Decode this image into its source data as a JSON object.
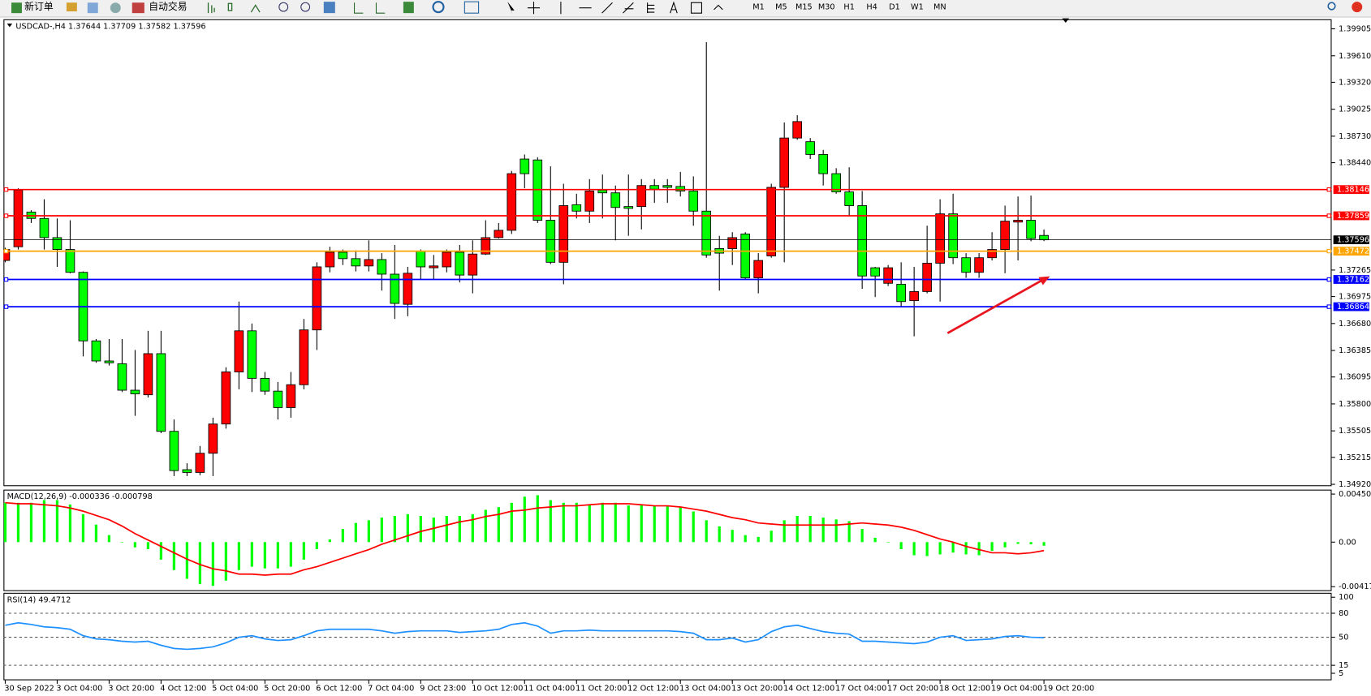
{
  "toolbar": {
    "buttons": [
      "新订单",
      "自动交易"
    ],
    "timeframes": [
      "M1",
      "M5",
      "M15",
      "M30",
      "H1",
      "H4",
      "D1",
      "W1",
      "MN"
    ]
  },
  "chart_data": [
    {
      "type": "candlestick",
      "title": "USDCAD-,H4  1.37644 1.37709 1.37582 1.37596",
      "categories": [
        "30 Sep 2022",
        null,
        null,
        null,
        "3 Oct 04:00",
        null,
        null,
        null,
        "3 Oct 20:00",
        null,
        null,
        null,
        "4 Oct 12:00",
        null,
        null,
        null,
        "5 Oct 04:00",
        null,
        null,
        null,
        "5 Oct 20:00",
        null,
        null,
        null,
        "6 Oct 12:00",
        null,
        null,
        null,
        "7 Oct 04:00",
        null,
        null,
        null,
        "9 Oct 23:00",
        null,
        null,
        null,
        "10 Oct 12:00",
        null,
        null,
        null,
        "11 Oct 04:00",
        null,
        null,
        null,
        "11 Oct 20:00",
        null,
        null,
        null,
        "12 Oct 12:00",
        null,
        null,
        null,
        "13 Oct 04:00",
        null,
        null,
        null,
        "13 Oct 20:00",
        null,
        null,
        null,
        "14 Oct 12:00",
        null,
        null,
        null,
        "17 Oct 04:00",
        null,
        null,
        null,
        "17 Oct 20:00",
        null,
        null,
        null,
        "18 Oct 12:00",
        null,
        null,
        null,
        "19 Oct 04:00",
        null,
        null,
        null,
        "19 Oct 20:00"
      ],
      "open": [
        1.3737,
        1.3752,
        1.379,
        1.3783,
        1.3762,
        1.3749,
        1.3724,
        1.3649,
        1.3627,
        1.3624,
        1.3595,
        1.359,
        1.3635,
        1.355,
        1.3508,
        1.3505,
        1.3526,
        1.3558,
        1.3615,
        1.366,
        1.3608,
        1.3594,
        1.3576,
        1.3601,
        1.3661,
        1.373,
        1.3746,
        1.3739,
        1.3731,
        1.3738,
        1.3722,
        1.3689,
        1.3747,
        1.3729,
        1.373,
        1.3746,
        1.3721,
        1.3744,
        1.3762,
        1.377,
        1.3848,
        1.3847,
        1.3781,
        1.3735,
        1.3798,
        1.3791,
        1.3814,
        1.3811,
        1.3796,
        1.3796,
        1.3819,
        1.3819,
        1.3818,
        1.3813,
        1.3791,
        1.375,
        1.375,
        1.3766,
        1.3718,
        1.3742,
        1.3817,
        1.3871,
        1.3867,
        1.3853,
        1.3832,
        1.3812,
        1.3797,
        1.3729,
        1.3712,
        1.3711,
        1.3693,
        1.3703,
        1.3734,
        1.3788,
        1.374,
        1.3724,
        1.374,
        1.3749,
        1.3779,
        1.3781,
        1.37644
      ],
      "high": [
        1.3751,
        1.3816,
        1.3792,
        1.3804,
        1.3783,
        1.3781,
        1.3725,
        1.3651,
        1.3651,
        1.3651,
        1.3639,
        1.366,
        1.366,
        1.3563,
        1.3515,
        1.3534,
        1.3565,
        1.362,
        1.3692,
        1.3668,
        1.3615,
        1.3604,
        1.3615,
        1.3673,
        1.3735,
        1.3752,
        1.3749,
        1.3748,
        1.3759,
        1.3745,
        1.3754,
        1.373,
        1.3749,
        1.3743,
        1.3749,
        1.3754,
        1.3759,
        1.3781,
        1.3778,
        1.3835,
        1.3853,
        1.385,
        1.384,
        1.3821,
        1.381,
        1.3826,
        1.3831,
        1.3819,
        1.3831,
        1.3826,
        1.3826,
        1.3826,
        1.3834,
        1.3829,
        1.3976,
        1.3764,
        1.3768,
        1.3768,
        1.3745,
        1.3821,
        1.3888,
        1.3896,
        1.3871,
        1.3858,
        1.3838,
        1.3839,
        1.3813,
        1.373,
        1.3732,
        1.3735,
        1.373,
        1.3775,
        1.3804,
        1.381,
        1.3745,
        1.3745,
        1.3768,
        1.3797,
        1.3807,
        1.3808,
        1.37709
      ],
      "low": [
        1.3735,
        1.3749,
        1.3778,
        1.3749,
        1.373,
        1.3723,
        1.3632,
        1.3625,
        1.3622,
        1.3593,
        1.3567,
        1.3587,
        1.3548,
        1.3501,
        1.3501,
        1.3502,
        1.3501,
        1.3553,
        1.3596,
        1.3593,
        1.359,
        1.3563,
        1.3565,
        1.3596,
        1.3639,
        1.3724,
        1.3732,
        1.3725,
        1.3725,
        1.3704,
        1.3673,
        1.3676,
        1.3716,
        1.3716,
        1.3724,
        1.3713,
        1.3701,
        1.3743,
        1.3761,
        1.3766,
        1.3816,
        1.3778,
        1.3733,
        1.3711,
        1.3783,
        1.3778,
        1.3783,
        1.3759,
        1.3764,
        1.3771,
        1.38,
        1.38,
        1.3807,
        1.3775,
        1.374,
        1.3704,
        1.3732,
        1.3716,
        1.3701,
        1.374,
        1.3735,
        1.3869,
        1.3848,
        1.3819,
        1.381,
        1.3785,
        1.3706,
        1.3697,
        1.3709,
        1.3687,
        1.3654,
        1.3701,
        1.3692,
        1.3733,
        1.3718,
        1.3718,
        1.3737,
        1.3723,
        1.3737,
        1.3758,
        1.37582
      ],
      "close": [
        1.3749,
        1.3814,
        1.3783,
        1.3762,
        1.3749,
        1.3724,
        1.3649,
        1.3627,
        1.3625,
        1.3595,
        1.3591,
        1.3635,
        1.355,
        1.3507,
        1.3505,
        1.3526,
        1.3558,
        1.3615,
        1.366,
        1.3608,
        1.3594,
        1.3576,
        1.3601,
        1.3661,
        1.373,
        1.3746,
        1.3739,
        1.3731,
        1.3738,
        1.3722,
        1.369,
        1.3723,
        1.373,
        1.3731,
        1.3746,
        1.3721,
        1.3744,
        1.3762,
        1.377,
        1.3832,
        1.3832,
        1.3781,
        1.3735,
        1.3797,
        1.3791,
        1.3813,
        1.3811,
        1.3795,
        1.3794,
        1.3819,
        1.3815,
        1.3817,
        1.3813,
        1.3791,
        1.3743,
        1.3745,
        1.3762,
        1.3718,
        1.3737,
        1.3817,
        1.3871,
        1.3889,
        1.3853,
        1.3832,
        1.3812,
        1.3797,
        1.372,
        1.372,
        1.3729,
        1.3692,
        1.3703,
        1.3734,
        1.3788,
        1.374,
        1.3724,
        1.374,
        1.3749,
        1.378,
        1.3781,
        1.3761,
        1.37596
      ],
      "up_color": "#ff0000",
      "down_color": "#00ff00",
      "ylim": [
        1.349,
        1.4001
      ],
      "yticks": [
        {
          "value": 1.39905,
          "label": "1.39905"
        },
        {
          "value": 1.3961,
          "label": "1.39610"
        },
        {
          "value": 1.3932,
          "label": "1.39320"
        },
        1.39025,
        {
          "value": 1.3873,
          "label": "1.38730"
        },
        {
          "value": 1.3844,
          "label": "1.38440"
        },
        1.37265,
        1.36975,
        {
          "value": 1.3668,
          "label": "1.36680"
        },
        1.36385,
        1.36095,
        {
          "value": 1.358,
          "label": "1.35800"
        },
        1.35505,
        1.35215,
        {
          "value": 1.3492,
          "label": "1.34920"
        }
      ],
      "levels": [
        {
          "value": 1.38146,
          "color": "#ff0000"
        },
        {
          "value": 1.37859,
          "color": "#ff0000"
        },
        {
          "value": 1.37596,
          "color": "#000000"
        },
        {
          "value": 1.37472,
          "color": "#ffa500"
        },
        {
          "value": 1.37162,
          "color": "#0000ff"
        },
        {
          "value": 1.36864,
          "color": "#0000ff"
        }
      ]
    },
    {
      "type": "macd",
      "title": "MACD(12,26,9) -0.000336 -0.000798",
      "values": [
        0.00369,
        0.00369,
        0.00369,
        0.00394,
        0.00394,
        0.00353,
        0.00262,
        0.00164,
        0.00066,
        0,
        -0.00049,
        -0.00066,
        -0.00164,
        -0.00262,
        -0.00344,
        -0.00394,
        -0.0041,
        -0.00361,
        -0.00262,
        -0.0023,
        -0.00246,
        -0.00246,
        -0.0023,
        -0.00164,
        -0.00066,
        0.00025,
        0.00123,
        0.0018,
        0.00205,
        0.0023,
        0.00246,
        0.00262,
        0.00246,
        0.0023,
        0.00246,
        0.00246,
        0.00262,
        0.00303,
        0.00328,
        0.00369,
        0.00426,
        0.0044,
        0.00394,
        0.00369,
        0.00369,
        0.00353,
        0.00369,
        0.00369,
        0.00344,
        0.00353,
        0.00344,
        0.00344,
        0.00328,
        0.00287,
        0.00205,
        0.00148,
        0.00115,
        0.00066,
        0.00049,
        0.00107,
        0.00205,
        0.00246,
        0.00246,
        0.0023,
        0.00213,
        0.00197,
        0.00123,
        0.00041,
        0,
        -0.00066,
        -0.00123,
        -0.00131,
        -0.00115,
        -0.00098,
        -0.00115,
        -0.00123,
        -0.00082,
        -0.00049,
        -0.00016,
        -0.0002,
        -0.000336
      ],
      "color": "#00ff00",
      "signal": [
        0.0037,
        0.0036,
        0.0036,
        0.0035,
        0.0034,
        0.0032,
        0.0029,
        0.0025,
        0.0021,
        0.0015,
        0.0008,
        0.0002,
        -0.0004,
        -0.001,
        -0.0016,
        -0.0021,
        -0.0025,
        -0.0027,
        -0.003,
        -0.003,
        -0.0031,
        -0.003,
        -0.003,
        -0.0026,
        -0.0023,
        -0.0019,
        -0.0015,
        -0.0011,
        -0.0007,
        -0.0002,
        0.0002,
        0.0006,
        0.001,
        0.0013,
        0.0016,
        0.0019,
        0.0021,
        0.0024,
        0.0026,
        0.0029,
        0.003,
        0.0032,
        0.0033,
        0.0034,
        0.0034,
        0.0035,
        0.0036,
        0.0036,
        0.0036,
        0.0035,
        0.0034,
        0.0034,
        0.0033,
        0.0031,
        0.0029,
        0.0026,
        0.0023,
        0.0021,
        0.0018,
        0.0017,
        0.0016,
        0.0016,
        0.0016,
        0.0016,
        0.0016,
        0.0017,
        0.0018,
        0.0017,
        0.0016,
        0.0014,
        0.0011,
        0.0007,
        0.0003,
        0,
        -0.0004,
        -0.0007,
        -0.001,
        -0.001,
        -0.0011,
        -0.001,
        -0.000798
      ],
      "signal_color": "#ff0000",
      "ylim": [
        -0.00459,
        0.00492
      ],
      "yticks": [
        0.004505,
        {
          "value": 0,
          "label": "0.00"
        },
        -0.004177
      ]
    },
    {
      "type": "rsi",
      "title": "RSI(14) 49.4712",
      "values": [
        65,
        68,
        66,
        63,
        62,
        60,
        52,
        48,
        47,
        45,
        44,
        45,
        40,
        36,
        35,
        36,
        38,
        43,
        50,
        52,
        48,
        46,
        47,
        52,
        58,
        60,
        60,
        60,
        60,
        58,
        55,
        57,
        58,
        58,
        58,
        56,
        57,
        58,
        60,
        66,
        68,
        64,
        55,
        58,
        58,
        59,
        58,
        58,
        58,
        58,
        58,
        58,
        57,
        55,
        47,
        47,
        49,
        44,
        47,
        57,
        63,
        65,
        61,
        57,
        55,
        54,
        45,
        45,
        44,
        43,
        42,
        44,
        50,
        52,
        46,
        47,
        48,
        51,
        52,
        50,
        49.4712
      ],
      "color": "#1e90ff",
      "ylim": [
        -3.7,
        105.5
      ],
      "yticks": [
        100,
        80,
        50,
        15,
        5
      ],
      "levels": [
        80,
        50,
        15
      ]
    }
  ]
}
